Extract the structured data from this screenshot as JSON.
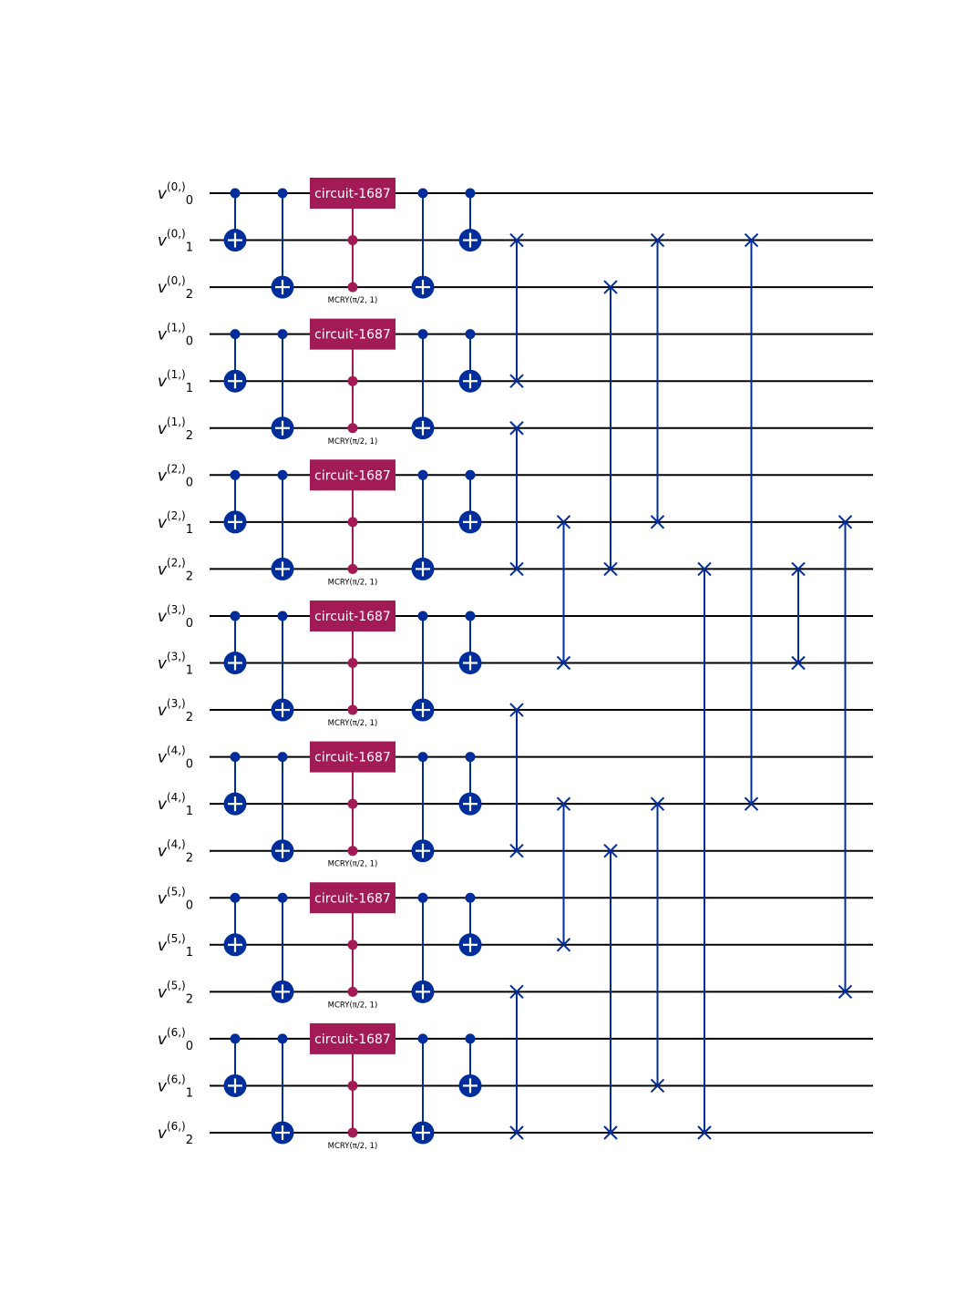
{
  "colors": {
    "wire": "#000000",
    "cnot": "#002d9c",
    "swap": "#002d9c",
    "mcry": "#a21a56",
    "gate_text": "#ffffff"
  },
  "qubits": [
    {
      "base": "v",
      "sup": "(0,)",
      "sub": "0"
    },
    {
      "base": "v",
      "sup": "(0,)",
      "sub": "1"
    },
    {
      "base": "v",
      "sup": "(0,)",
      "sub": "2"
    },
    {
      "base": "v",
      "sup": "(1,)",
      "sub": "0"
    },
    {
      "base": "v",
      "sup": "(1,)",
      "sub": "1"
    },
    {
      "base": "v",
      "sup": "(1,)",
      "sub": "2"
    },
    {
      "base": "v",
      "sup": "(2,)",
      "sub": "0"
    },
    {
      "base": "v",
      "sup": "(2,)",
      "sub": "1"
    },
    {
      "base": "v",
      "sup": "(2,)",
      "sub": "2"
    },
    {
      "base": "v",
      "sup": "(3,)",
      "sub": "0"
    },
    {
      "base": "v",
      "sup": "(3,)",
      "sub": "1"
    },
    {
      "base": "v",
      "sup": "(3,)",
      "sub": "2"
    },
    {
      "base": "v",
      "sup": "(4,)",
      "sub": "0"
    },
    {
      "base": "v",
      "sup": "(4,)",
      "sub": "1"
    },
    {
      "base": "v",
      "sup": "(4,)",
      "sub": "2"
    },
    {
      "base": "v",
      "sup": "(5,)",
      "sub": "0"
    },
    {
      "base": "v",
      "sup": "(5,)",
      "sub": "1"
    },
    {
      "base": "v",
      "sup": "(5,)",
      "sub": "2"
    },
    {
      "base": "v",
      "sup": "(6,)",
      "sub": "0"
    },
    {
      "base": "v",
      "sup": "(6,)",
      "sub": "1"
    },
    {
      "base": "v",
      "sup": "(6,)",
      "sub": "2"
    }
  ],
  "gates": {
    "block_label": "circuit-1687",
    "mcry_label": "MCRY(π/2, 1)"
  },
  "cnot_layers": [
    {
      "control_offset": 0,
      "target_offset": 1
    },
    {
      "control_offset": 0,
      "target_offset": 2
    },
    {
      "control_offset": 0,
      "target_offset": 2
    },
    {
      "control_offset": 0,
      "target_offset": 1
    }
  ],
  "swaps": [
    {
      "column": 0,
      "qubits": [
        1,
        4
      ]
    },
    {
      "column": 0,
      "qubits": [
        5,
        8
      ]
    },
    {
      "column": 0,
      "qubits": [
        11,
        14
      ]
    },
    {
      "column": 0,
      "qubits": [
        17,
        20
      ]
    },
    {
      "column": 1,
      "qubits": [
        7,
        10
      ]
    },
    {
      "column": 1,
      "qubits": [
        13,
        16
      ]
    },
    {
      "column": 2,
      "qubits": [
        2,
        8
      ]
    },
    {
      "column": 2,
      "qubits": [
        14,
        20
      ]
    },
    {
      "column": 3,
      "qubits": [
        1,
        7
      ]
    },
    {
      "column": 3,
      "qubits": [
        13,
        19
      ]
    },
    {
      "column": 4,
      "qubits": [
        8,
        20
      ]
    },
    {
      "column": 5,
      "qubits": [
        1,
        13
      ]
    },
    {
      "column": 6,
      "qubits": [
        8,
        10
      ]
    },
    {
      "column": 7,
      "qubits": [
        7,
        17
      ]
    }
  ]
}
